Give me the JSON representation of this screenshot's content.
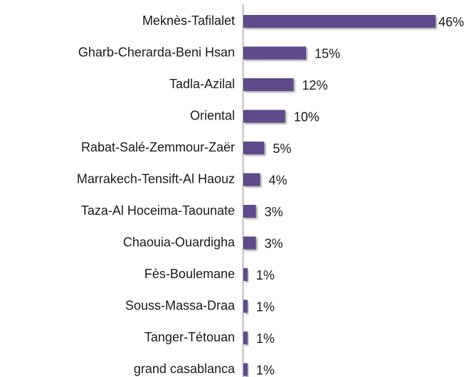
{
  "chart_data": {
    "type": "bar",
    "orientation": "horizontal",
    "categories": [
      "Meknès-Tafilalet",
      "Gharb-Cherarda-Beni Hsan",
      "Tadla-Azilal",
      "Oriental",
      "Rabat-Salé-Zemmour-Zaër",
      "Marrakech-Tensift-Al Haouz",
      "Taza-Al Hoceima-Taounate",
      "Chaouia-Ouardigha",
      "Fès-Boulemane",
      "Souss-Massa-Draa",
      "Tanger-Tétouan",
      "grand casablanca"
    ],
    "values": [
      46,
      15,
      12,
      10,
      5,
      4,
      3,
      3,
      1,
      1,
      1,
      1
    ],
    "value_labels": [
      "46%",
      "15%",
      "12%",
      "10%",
      "5%",
      "4%",
      "3%",
      "3%",
      "1%",
      "1%",
      "1%",
      "1%"
    ],
    "color": "#5f4b8b"
  }
}
